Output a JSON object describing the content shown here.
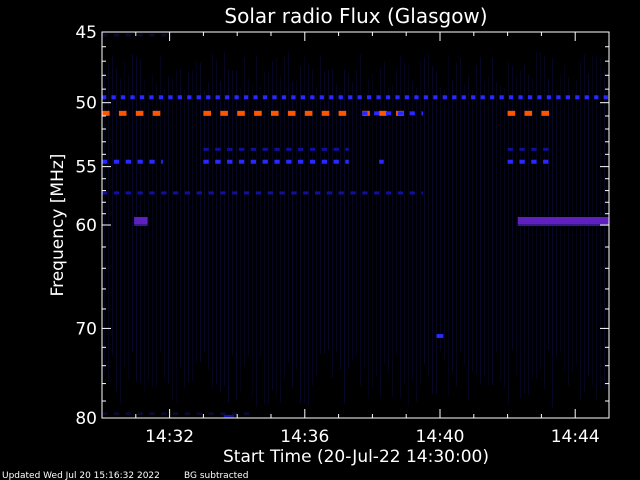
{
  "chart_data": {
    "type": "heatmap",
    "title": "Solar radio Flux (Glasgow)",
    "ylabel": "Frequency [MHz]",
    "xlabel": "Start Time (20-Jul-22 14:30:00)",
    "x_unit": "minutes after 14:30:00",
    "xlim": [
      0,
      15
    ],
    "ylim": [
      45,
      80
    ],
    "y_scale": "log",
    "y_direction": "inverted",
    "y_ticks": [
      45,
      50,
      55,
      60,
      70,
      80
    ],
    "x_ticks": [
      "14:32",
      "14:36",
      "14:40",
      "14:44"
    ],
    "x_tick_values": [
      2,
      6,
      10,
      14
    ],
    "colors": {
      "background": "#000000",
      "faint": "#08082a",
      "low": "#1010a0",
      "medium": "#2828ff",
      "elevated": "#6020c0",
      "high": "#ff5500"
    },
    "features": [
      {
        "name": "dashed-line-49.6",
        "freq": 49.6,
        "x_range": [
          0,
          15
        ],
        "level": "medium",
        "dash_minutes": 0.28
      },
      {
        "name": "strong-line-50.8-a",
        "freq": 50.8,
        "x_range": [
          0,
          1.8
        ],
        "level": "high",
        "dash_minutes": 0.5
      },
      {
        "name": "strong-line-50.8-b",
        "freq": 50.8,
        "x_range": [
          3,
          7.3
        ],
        "level": "high",
        "dash_minutes": 0.5
      },
      {
        "name": "strong-line-50.8-c",
        "freq": 50.8,
        "x_range": [
          7.7,
          9.1
        ],
        "level": "high",
        "dash_minutes": 0.5
      },
      {
        "name": "strong-line-50.8-d",
        "freq": 50.8,
        "x_range": [
          12,
          13.3
        ],
        "level": "high",
        "dash_minutes": 0.5
      },
      {
        "name": "line-50.8-blue",
        "freq": 50.8,
        "x_range": [
          7.7,
          9.5
        ],
        "level": "medium",
        "dash_minutes": 0.35
      },
      {
        "name": "line-53.6-a",
        "freq": 53.6,
        "x_range": [
          3,
          7.3
        ],
        "level": "low",
        "dash_minutes": 0.35
      },
      {
        "name": "line-53.6-b",
        "freq": 53.6,
        "x_range": [
          12,
          13.3
        ],
        "level": "low",
        "dash_minutes": 0.35
      },
      {
        "name": "line-54.6-a",
        "freq": 54.6,
        "x_range": [
          0,
          1.8
        ],
        "level": "medium",
        "dash_minutes": 0.35
      },
      {
        "name": "line-54.6-b",
        "freq": 54.6,
        "x_range": [
          3,
          7.3
        ],
        "level": "medium",
        "dash_minutes": 0.35
      },
      {
        "name": "line-54.6-c",
        "freq": 54.6,
        "x_range": [
          8.2,
          8.5
        ],
        "level": "medium",
        "dash_minutes": 0.3
      },
      {
        "name": "line-54.6-d",
        "freq": 54.6,
        "x_range": [
          12,
          13.3
        ],
        "level": "medium",
        "dash_minutes": 0.35
      },
      {
        "name": "line-57.2",
        "freq": 57.2,
        "x_range": [
          0,
          9.5
        ],
        "level": "low",
        "dash_minutes": 0.35
      },
      {
        "name": "line-45.2",
        "freq": 45.2,
        "x_range": [
          0,
          2.0
        ],
        "level": "faint",
        "dash_minutes": 0.35
      },
      {
        "name": "line-79.5",
        "freq": 79.5,
        "x_range": [
          0,
          4.5
        ],
        "level": "faint",
        "dash_minutes": 0.35
      },
      {
        "name": "burst-59.6-a",
        "freq": 59.6,
        "x_range": [
          0.95,
          1.35
        ],
        "level": "elevated",
        "dash_minutes": 0
      },
      {
        "name": "burst-59.6-b",
        "freq": 59.6,
        "x_range": [
          12.3,
          15
        ],
        "level": "elevated",
        "dash_minutes": 0
      },
      {
        "name": "blip-70.8",
        "freq": 70.8,
        "x_range": [
          9.9,
          10.1
        ],
        "level": "medium",
        "dash_minutes": 0
      },
      {
        "name": "blip-79.8",
        "freq": 79.8,
        "x_range": [
          3.6,
          3.9
        ],
        "level": "low",
        "dash_minutes": 0
      }
    ]
  },
  "footer": {
    "updated": "Updated Wed Jul 20 15:16:32 2022",
    "note": "BG subtracted"
  }
}
